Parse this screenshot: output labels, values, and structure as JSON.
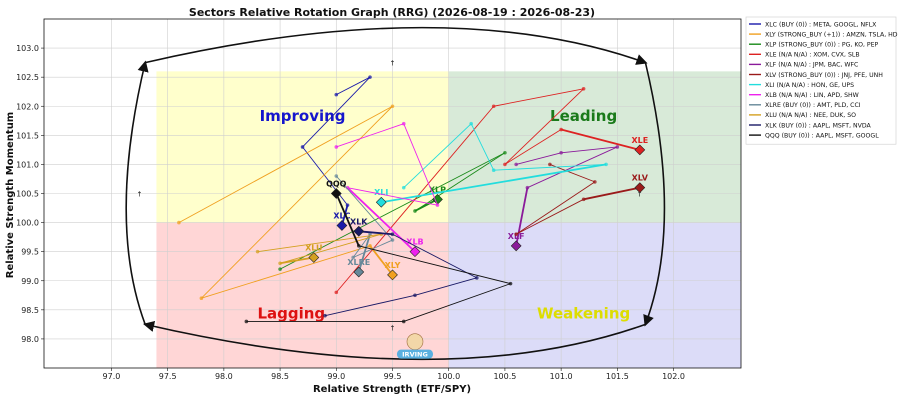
{
  "chart_data": {
    "type": "scatter",
    "title": "Sectors Relative Rotation Graph (RRG) (2026-08-19 : 2026-08-23)",
    "xlabel": "Relative Strength (ETF/SPY)",
    "ylabel": "Relative Strength Momentum",
    "xlim": [
      96.4,
      102.6
    ],
    "ylim": [
      97.5,
      103.5
    ],
    "xticks": [
      "97.0",
      "97.5",
      "98.0",
      "98.5",
      "99.0",
      "99.5",
      "100.0",
      "100.5",
      "101.0",
      "101.5",
      "102.0"
    ],
    "yticks": [
      "98.0",
      "98.5",
      "99.0",
      "99.5",
      "100.0",
      "100.5",
      "101.0",
      "101.5",
      "102.0",
      "102.5",
      "103.0"
    ],
    "grid": true,
    "legend_position": "outside-right",
    "center": [
      100.0,
      100.0
    ],
    "quadrants": [
      {
        "name": "Improving",
        "x": [
          97.4,
          100.0
        ],
        "y": [
          100.0,
          102.6
        ],
        "fill": "#ffffcc",
        "text_color": "#1515cc",
        "label_at": [
          98.7,
          101.75
        ]
      },
      {
        "name": "Leading",
        "x": [
          100.0,
          102.6
        ],
        "y": [
          100.0,
          102.6
        ],
        "fill": "#d8ead8",
        "text_color": "#1a7a1a",
        "label_at": [
          101.2,
          101.75
        ]
      },
      {
        "name": "Lagging",
        "x": [
          97.4,
          100.0
        ],
        "y": [
          97.5,
          100.0
        ],
        "fill": "#ffd6d6",
        "text_color": "#dd1111",
        "label_at": [
          98.6,
          98.35
        ]
      },
      {
        "name": "Weakening",
        "x": [
          100.0,
          102.6
        ],
        "y": [
          97.5,
          100.0
        ],
        "fill": "#dcdcf8",
        "text_color": "#dddd00",
        "label_at": [
          101.2,
          98.35
        ]
      }
    ],
    "series": [
      {
        "name": "XLC",
        "legend": "XLC (BUY (0)) : META, GOOGL, NFLX",
        "color": "#1a1aaa",
        "points": [
          [
            99.0,
            102.2
          ],
          [
            99.3,
            102.5
          ],
          [
            98.7,
            101.3
          ],
          [
            99.1,
            100.3
          ],
          [
            99.05,
            99.95
          ]
        ],
        "end_label": "XLC"
      },
      {
        "name": "XLY",
        "legend": "XLY (STRONG_BUY (+1)) : AMZN, TSLA, HD",
        "color": "#f0a020",
        "points": [
          [
            97.6,
            100.0
          ],
          [
            99.5,
            102.0
          ],
          [
            97.8,
            98.7
          ],
          [
            99.3,
            99.6
          ],
          [
            99.5,
            99.1
          ]
        ],
        "end_label": "XLY"
      },
      {
        "name": "XLP",
        "legend": "XLP (STRONG_BUY (0)) : PG, KO, PEP",
        "color": "#1a8a1a",
        "points": [
          [
            98.5,
            99.2
          ],
          [
            99.2,
            99.9
          ],
          [
            100.5,
            101.2
          ],
          [
            99.7,
            100.2
          ],
          [
            99.9,
            100.4
          ]
        ],
        "end_label": "XLP"
      },
      {
        "name": "XLE",
        "legend": "XLE (N/A N/A) : XOM, CVX, SLB",
        "color": "#dd2222",
        "points": [
          [
            99.0,
            98.8
          ],
          [
            100.4,
            102.0
          ],
          [
            101.2,
            102.3
          ],
          [
            100.5,
            101.0
          ],
          [
            101.0,
            101.6
          ],
          [
            101.7,
            101.25
          ]
        ],
        "end_label": "XLE"
      },
      {
        "name": "XLF",
        "legend": "XLF (N/A N/A) : JPM, BAC, WFC",
        "color": "#8a1a9a",
        "points": [
          [
            100.6,
            101.0
          ],
          [
            101.0,
            101.2
          ],
          [
            101.5,
            101.3
          ],
          [
            100.7,
            100.6
          ],
          [
            100.6,
            99.6
          ]
        ],
        "end_label": "XLF"
      },
      {
        "name": "XLV",
        "legend": "XLV (STRONG_BUY (0)) : JNJ, PFE, UNH",
        "color": "#9a1a1a",
        "points": [
          [
            100.9,
            101.0
          ],
          [
            101.3,
            100.7
          ],
          [
            100.6,
            99.8
          ],
          [
            101.2,
            100.4
          ],
          [
            101.7,
            100.6
          ]
        ],
        "end_label": "XLV"
      },
      {
        "name": "XLI",
        "legend": "XLI (N/A N/A) : HON, GE, UPS",
        "color": "#22dddd",
        "points": [
          [
            99.6,
            100.6
          ],
          [
            100.2,
            101.7
          ],
          [
            100.4,
            100.9
          ],
          [
            101.4,
            101.0
          ],
          [
            99.4,
            100.35
          ]
        ],
        "end_label": "XLI"
      },
      {
        "name": "XLB",
        "legend": "XLB (N/A N/A) : LIN, APD, SHW",
        "color": "#ee22ee",
        "points": [
          [
            99.0,
            101.3
          ],
          [
            99.6,
            101.7
          ],
          [
            99.9,
            100.3
          ],
          [
            99.1,
            100.6
          ],
          [
            99.7,
            99.5
          ]
        ],
        "end_label": "XLB"
      },
      {
        "name": "XLRE",
        "legend": "XLRE (BUY (0)) : AMT, PLD, CCI",
        "color": "#668899",
        "points": [
          [
            99.0,
            100.8
          ],
          [
            99.5,
            99.7
          ],
          [
            99.15,
            99.4
          ],
          [
            99.3,
            99.8
          ],
          [
            99.2,
            99.15
          ]
        ],
        "end_label": "XLRE"
      },
      {
        "name": "XLU",
        "legend": "XLU (N/A N/A) : NEE, DUK, SO",
        "color": "#d4a020",
        "points": [
          [
            98.3,
            99.5
          ],
          [
            99.4,
            99.8
          ],
          [
            98.5,
            99.3
          ],
          [
            98.8,
            99.4
          ]
        ],
        "end_label": "XLU"
      },
      {
        "name": "XLK",
        "legend": "XLK (BUY (0)) : AAPL, MSFT, NVDA",
        "color": "#1a1a66",
        "points": [
          [
            98.9,
            98.4
          ],
          [
            99.7,
            98.75
          ],
          [
            100.25,
            99.05
          ],
          [
            99.5,
            99.8
          ],
          [
            99.2,
            99.85
          ]
        ],
        "end_label": "XLK"
      },
      {
        "name": "QQQ",
        "legend": "QQQ (BUY (0)) : AAPL, MSFT, GOOGL",
        "color": "#111111",
        "points": [
          [
            98.2,
            98.3
          ],
          [
            99.6,
            98.3
          ],
          [
            100.55,
            98.95
          ],
          [
            99.2,
            99.6
          ],
          [
            99.0,
            100.5
          ]
        ],
        "end_label": "QQQ"
      }
    ]
  },
  "watermark": {
    "lines": [
      "IRVING"
    ],
    "colors": {
      "ribbon": "#5ab0e0",
      "face": "#f3d7a8"
    }
  },
  "loop_arrow_color": "#111111",
  "annotations": {
    "small_arrows": [
      [
        97.25,
        100.5
      ],
      [
        99.5,
        102.75
      ],
      [
        99.5,
        98.2
      ],
      [
        101.7,
        100.5
      ]
    ]
  }
}
